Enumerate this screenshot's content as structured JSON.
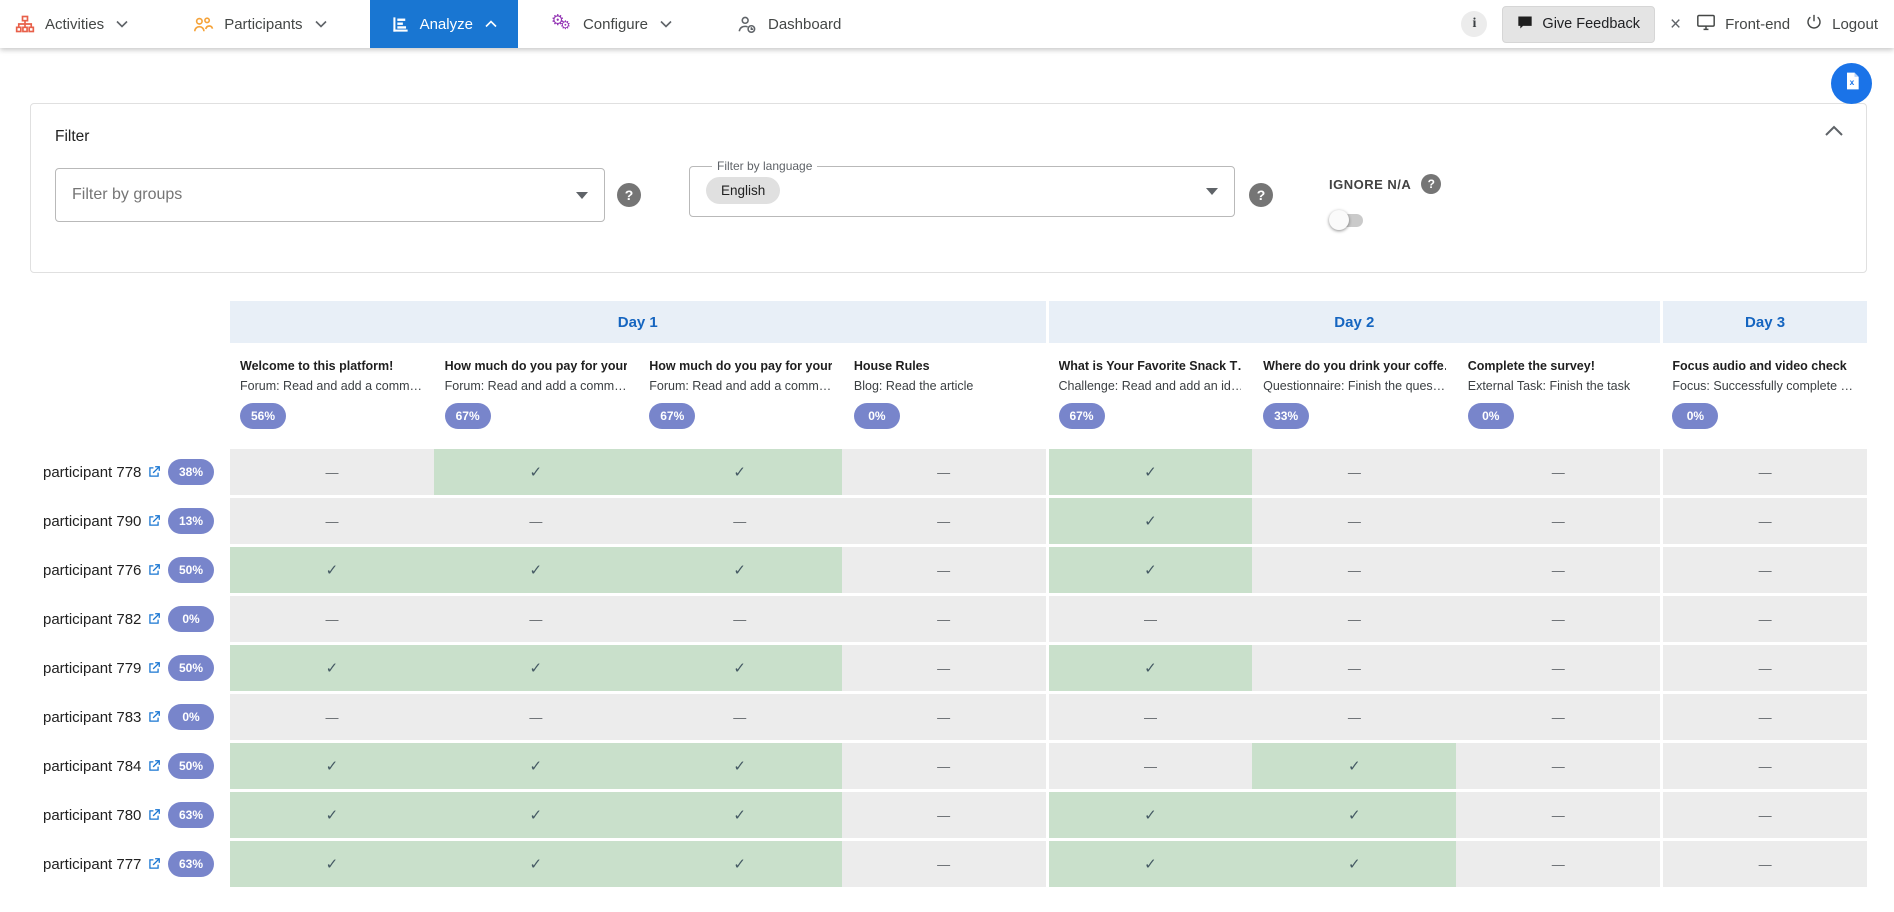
{
  "nav": {
    "items": [
      {
        "label": "Activities",
        "icon": "org-chart-icon",
        "chevron": "down",
        "active": false
      },
      {
        "label": "Participants",
        "icon": "people-icon",
        "chevron": "down",
        "active": false
      },
      {
        "label": "Analyze",
        "icon": "bar-chart-icon",
        "chevron": "up",
        "active": true
      },
      {
        "label": "Configure",
        "icon": "gears-icon",
        "chevron": "down",
        "active": false
      },
      {
        "label": "Dashboard",
        "icon": "person-clock-icon",
        "chevron": null,
        "active": false
      }
    ],
    "right": {
      "info_glyph": "i",
      "feedback_label": "Give Feedback",
      "close_glyph": "×",
      "frontend_label": "Front-end",
      "logout_label": "Logout"
    }
  },
  "export_button": {
    "icon": "excel-file-icon"
  },
  "filter": {
    "title": "Filter",
    "groups_placeholder": "Filter by groups",
    "language_label": "Filter by language",
    "language_value": "English",
    "ignore_na_label": "IGNORE N/A",
    "toggle_on": false
  },
  "table": {
    "day_groups": [
      {
        "label": "Day 1",
        "span": 4
      },
      {
        "label": "Day 2",
        "span": 3
      },
      {
        "label": "Day 3",
        "span": 1
      }
    ],
    "columns": [
      {
        "title": "Welcome to this platform!",
        "subtitle": "Forum: Read and add a comm…",
        "percent": "56%"
      },
      {
        "title": "How much do you pay for your…",
        "subtitle": "Forum: Read and add a comm…",
        "percent": "67%"
      },
      {
        "title": "How much do you pay for your…",
        "subtitle": "Forum: Read and add a comm…",
        "percent": "67%"
      },
      {
        "title": "House Rules",
        "subtitle": "Blog: Read the article",
        "percent": "0%"
      },
      {
        "title": "What is Your Favorite Snack T…",
        "subtitle": "Challenge: Read and add an id…",
        "percent": "67%"
      },
      {
        "title": "Where do you drink your coffe…",
        "subtitle": "Questionnaire: Finish the ques…",
        "percent": "33%"
      },
      {
        "title": "Complete the survey!",
        "subtitle": "External Task: Finish the task",
        "percent": "0%"
      },
      {
        "title": "Focus audio and video check",
        "subtitle": "Focus: Successfully complete …",
        "percent": "0%"
      }
    ],
    "rows": [
      {
        "name": "participant 778",
        "percent": "38%",
        "cells": [
          0,
          1,
          1,
          0,
          1,
          0,
          0,
          0
        ]
      },
      {
        "name": "participant 790",
        "percent": "13%",
        "cells": [
          0,
          0,
          0,
          0,
          1,
          0,
          0,
          0
        ]
      },
      {
        "name": "participant 776",
        "percent": "50%",
        "cells": [
          1,
          1,
          1,
          0,
          1,
          0,
          0,
          0
        ]
      },
      {
        "name": "participant 782",
        "percent": "0%",
        "cells": [
          0,
          0,
          0,
          0,
          0,
          0,
          0,
          0
        ]
      },
      {
        "name": "participant 779",
        "percent": "50%",
        "cells": [
          1,
          1,
          1,
          0,
          1,
          0,
          0,
          0
        ]
      },
      {
        "name": "participant 783",
        "percent": "0%",
        "cells": [
          0,
          0,
          0,
          0,
          0,
          0,
          0,
          0
        ]
      },
      {
        "name": "participant 784",
        "percent": "50%",
        "cells": [
          1,
          1,
          1,
          0,
          0,
          1,
          0,
          0
        ]
      },
      {
        "name": "participant 780",
        "percent": "63%",
        "cells": [
          1,
          1,
          1,
          0,
          1,
          1,
          0,
          0
        ]
      },
      {
        "name": "participant 777",
        "percent": "63%",
        "cells": [
          1,
          1,
          1,
          0,
          1,
          1,
          0,
          0
        ]
      }
    ],
    "check_glyph": "✓",
    "dash_glyph": "—"
  },
  "colors": {
    "nav_active_bg": "#1976d2",
    "activities_icon": "#e8604a",
    "participants_icon": "#f5a33a",
    "configure_icon": "#9334b4",
    "day_band_bg": "#e8eff7",
    "day_text": "#1565c0",
    "pill_bg": "#7885cb",
    "cell_done_bg": "#c9e0cb",
    "cell_na_bg": "#ececec",
    "link_blue": "#1976d2",
    "export_bg": "#1a73e8"
  }
}
